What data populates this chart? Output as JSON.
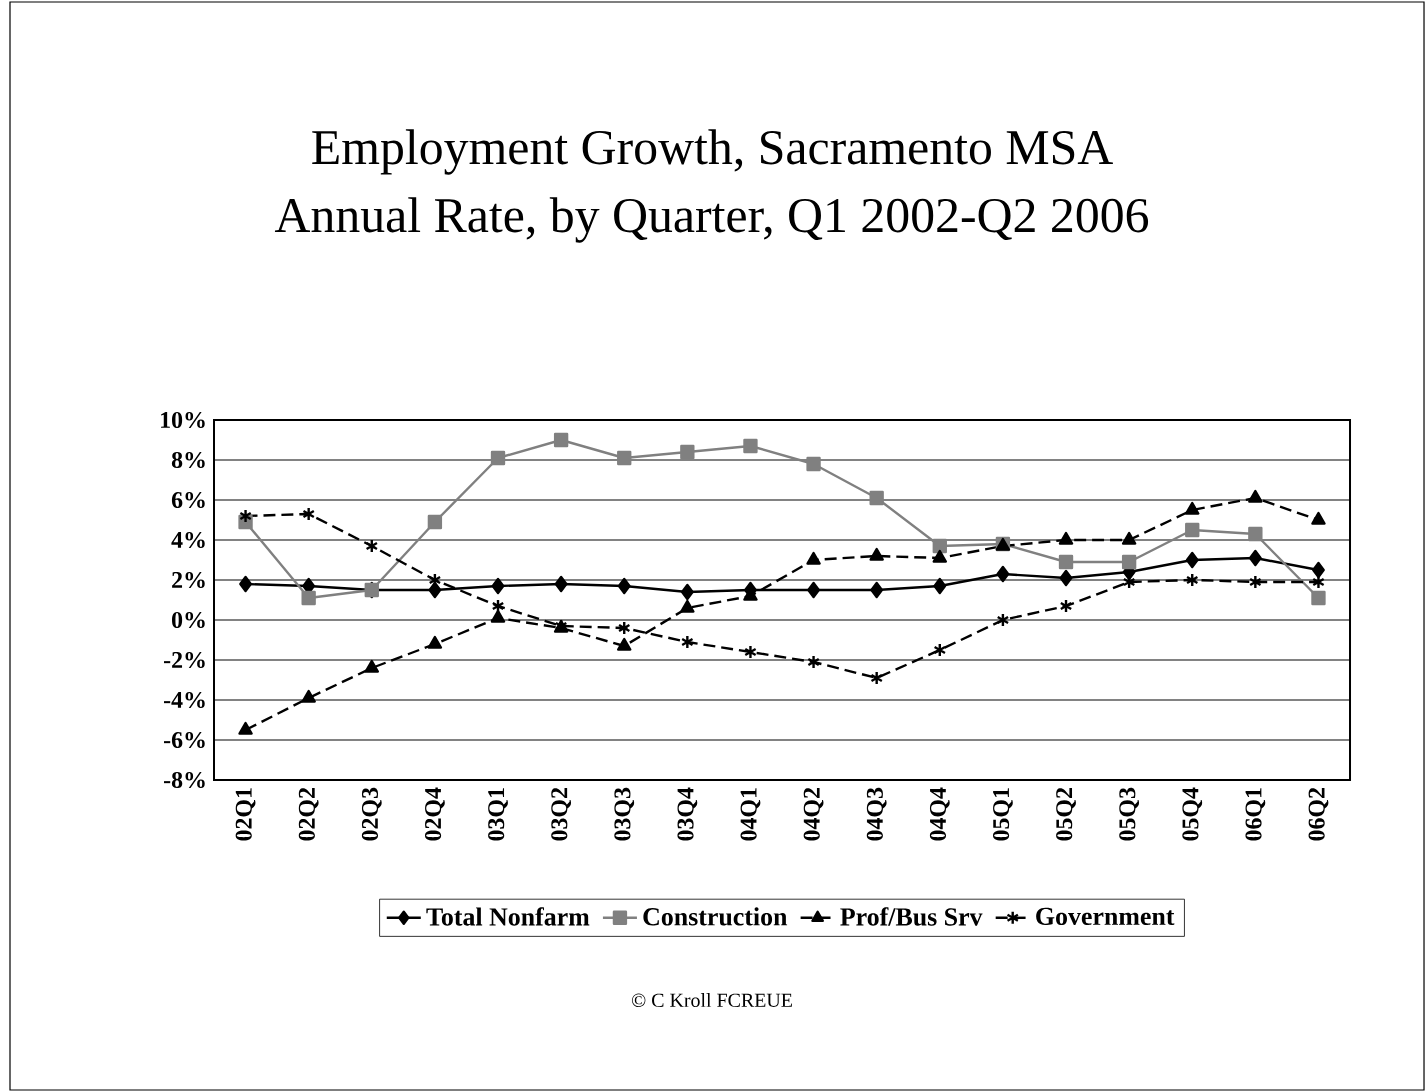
{
  "chart_data": {
    "type": "line",
    "title": "Employment Growth, Sacramento MSA",
    "subtitle": "Annual Rate, by Quarter, Q1 2002-Q2 2006",
    "categories": [
      "02Q1",
      "02Q2",
      "02Q3",
      "02Q4",
      "03Q1",
      "03Q2",
      "03Q3",
      "03Q4",
      "04Q1",
      "04Q2",
      "04Q3",
      "04Q4",
      "05Q1",
      "05Q2",
      "05Q3",
      "05Q4",
      "06Q1",
      "06Q2"
    ],
    "series": [
      {
        "name": "Total Nonfarm",
        "color": "#000000",
        "marker": "diamond",
        "line_style": "solid",
        "values": [
          1.8,
          1.7,
          1.5,
          1.5,
          1.7,
          1.8,
          1.7,
          1.4,
          1.5,
          1.5,
          1.5,
          1.7,
          2.3,
          2.1,
          2.4,
          3.0,
          3.1,
          2.5
        ]
      },
      {
        "name": "Construction",
        "color": "#808080",
        "marker": "square",
        "line_style": "solid",
        "values": [
          4.9,
          1.1,
          1.5,
          4.9,
          8.1,
          9.0,
          8.1,
          8.4,
          8.7,
          7.8,
          6.1,
          3.7,
          3.8,
          2.9,
          2.9,
          4.5,
          4.3,
          1.1
        ]
      },
      {
        "name": "Prof/Bus Srv",
        "color": "#000000",
        "marker": "triangle",
        "line_style": "dashed",
        "values": [
          -5.5,
          -3.9,
          -2.4,
          -1.2,
          0.1,
          -0.4,
          -1.3,
          0.6,
          1.2,
          3.0,
          3.2,
          3.1,
          3.7,
          4.0,
          4.0,
          5.5,
          6.1,
          5.0
        ]
      },
      {
        "name": "Government",
        "color": "#000000",
        "marker": "cross",
        "line_style": "dashed",
        "values": [
          5.2,
          5.3,
          3.7,
          2.0,
          0.7,
          -0.3,
          -0.4,
          -1.1,
          -1.6,
          -2.1,
          -2.9,
          -1.5,
          0.0,
          0.7,
          1.9,
          2.0,
          1.9,
          1.9
        ]
      }
    ],
    "ylim": [
      -8,
      10
    ],
    "yticks": [
      {
        "value": -8,
        "label": "-8%"
      },
      {
        "value": -6,
        "label": "-6%"
      },
      {
        "value": -4,
        "label": "-4%"
      },
      {
        "value": -2,
        "label": "-2%"
      },
      {
        "value": 0,
        "label": "0%"
      },
      {
        "value": 2,
        "label": "2%"
      },
      {
        "value": 4,
        "label": "4%"
      },
      {
        "value": 6,
        "label": "6%"
      },
      {
        "value": 8,
        "label": "8%"
      },
      {
        "value": 10,
        "label": "10%"
      }
    ],
    "grid": "y",
    "legend": "bottom",
    "annotations": [
      "© C Kroll FCREUE"
    ]
  }
}
